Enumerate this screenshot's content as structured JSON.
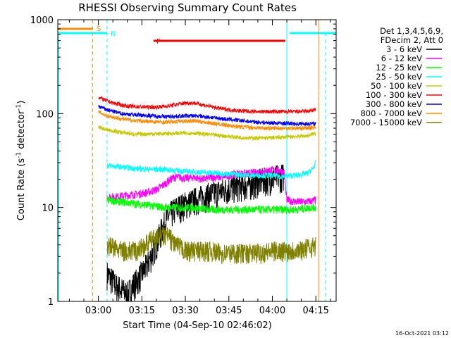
{
  "chart_data": {
    "type": "line",
    "title": "RHESSI Observing Summary Count Rates",
    "xlabel": "Start Time (04-Sep-10 02:46:02)",
    "ylabel_main": "Count Rate (s",
    "ylabel_sup1": "-1",
    "ylabel_mid": " detector",
    "ylabel_sup2": "-1",
    "ylabel_end": ")",
    "yscale": "log",
    "ylim": [
      1,
      1000
    ],
    "xlim_minutes": [
      0,
      96
    ],
    "x_tick_labels": [
      "03:00",
      "03:15",
      "03:30",
      "03:45",
      "04:00",
      "04:15"
    ],
    "x_tick_minutes": [
      14,
      29,
      44,
      59,
      74,
      89
    ],
    "y_tick_labels": [
      "1",
      "10",
      "100",
      "1000"
    ],
    "y_tick_values": [
      1,
      10,
      100,
      1000
    ],
    "legend_header": [
      "Det 1,3,4,5,6,9,",
      "FDecim 2, Att 0"
    ],
    "flag_labels": {
      "saa": "S",
      "night": "N",
      "flare": "F"
    },
    "flags": {
      "saa": [
        [
          0,
          12
        ]
      ],
      "night": [
        [
          0,
          17
        ],
        [
          80,
          96
        ]
      ],
      "flare": [
        [
          33,
          78.5
        ]
      ]
    },
    "vertical_markers_minutes": [
      12,
      17,
      79,
      90
    ],
    "series": [
      {
        "name": "3 - 6 keV",
        "color": "#000000",
        "x": [
          17,
          20,
          24,
          26,
          28,
          29,
          31,
          33,
          35,
          36,
          38,
          41,
          44,
          47,
          50,
          53,
          56,
          59,
          62,
          65,
          67,
          69,
          72,
          75,
          78
        ],
        "y": [
          2.0,
          1.5,
          1.2,
          1.5,
          1.8,
          2.0,
          2.5,
          3.5,
          5.0,
          6.0,
          8.0,
          10,
          11,
          12,
          13,
          14,
          15,
          16,
          17,
          17.5,
          18,
          19,
          20,
          21,
          22
        ]
      },
      {
        "name": "6 - 12 keV",
        "color": "#ff00ff",
        "x": [
          17,
          20,
          24,
          28,
          31,
          34,
          36,
          38,
          40,
          42,
          44,
          47,
          50,
          53,
          56,
          59,
          62,
          65,
          68,
          71,
          74,
          76,
          78,
          79,
          82,
          86,
          89
        ],
        "y": [
          13,
          13,
          13.5,
          14,
          14.5,
          15.5,
          17,
          19,
          21,
          21,
          20.5,
          21,
          20,
          21,
          21,
          22,
          23,
          23,
          23.5,
          24.5,
          25,
          25,
          24,
          12,
          11.5,
          11.5,
          12
        ]
      },
      {
        "name": "12 - 25 keV",
        "color": "#00ff00",
        "x": [
          17,
          22,
          27,
          32,
          37,
          42,
          47,
          52,
          57,
          62,
          67,
          72,
          77,
          82,
          87,
          89
        ],
        "y": [
          12,
          11.5,
          11,
          10.5,
          10,
          10,
          10,
          9.5,
          9.5,
          9.5,
          9.5,
          9.5,
          9.5,
          9.5,
          10,
          10
        ]
      },
      {
        "name": "25 - 50 keV",
        "color": "#00ffff",
        "x": [
          17,
          22,
          27,
          32,
          37,
          42,
          47,
          52,
          57,
          62,
          67,
          72,
          77,
          82,
          86,
          88,
          89
        ],
        "y": [
          28,
          27,
          26,
          25.5,
          25.5,
          24.5,
          24,
          23.5,
          23,
          22.5,
          22,
          22,
          21.5,
          22,
          23,
          26,
          30
        ]
      },
      {
        "name": "50 - 100 keV",
        "color": "#c8c800",
        "x": [
          14,
          17,
          22,
          27,
          32,
          37,
          42,
          47,
          52,
          57,
          62,
          67,
          72,
          77,
          82,
          86,
          89
        ],
        "y": [
          72,
          67,
          63,
          60,
          61,
          61,
          62,
          62,
          60,
          58,
          56,
          55,
          55,
          56,
          57,
          58,
          62
        ]
      },
      {
        "name": "100 - 300 keV",
        "color": "#ff0000",
        "x": [
          14,
          16,
          19,
          24,
          29,
          34,
          39,
          44,
          47,
          51,
          55,
          59,
          63,
          68,
          73,
          78,
          82,
          86,
          89
        ],
        "y": [
          150,
          140,
          130,
          120,
          118,
          117,
          122,
          130,
          130,
          122,
          115,
          110,
          107,
          105,
          105,
          105,
          105,
          106,
          110
        ]
      },
      {
        "name": "300 - 800 keV",
        "color": "#0000ff",
        "x": [
          14,
          17,
          22,
          27,
          32,
          37,
          42,
          47,
          52,
          57,
          62,
          67,
          72,
          77,
          82,
          86,
          89
        ],
        "y": [
          120,
          110,
          100,
          97,
          95,
          93,
          94,
          95,
          92,
          88,
          85,
          82,
          80,
          79,
          78,
          78,
          78
        ]
      },
      {
        "name": "800 - 7000 keV",
        "color": "#ff8c00",
        "x": [
          14,
          17,
          22,
          27,
          32,
          37,
          42,
          47,
          52,
          57,
          62,
          67,
          72,
          77,
          82,
          86,
          89
        ],
        "y": [
          105,
          95,
          88,
          84,
          82,
          81,
          83,
          84,
          80,
          76,
          73,
          71,
          70,
          70,
          70,
          70,
          72
        ]
      },
      {
        "name": "7000 - 15000 keV",
        "color": "#808000",
        "x": [
          17,
          22,
          27,
          30,
          32,
          35,
          38,
          41,
          44,
          48,
          52,
          56,
          60,
          64,
          68,
          72,
          76,
          80,
          84,
          89
        ],
        "y": [
          4.0,
          3.5,
          3.5,
          4.0,
          4.5,
          5.0,
          5.0,
          4.0,
          3.5,
          3.5,
          3.5,
          3.3,
          3.3,
          3.3,
          3.3,
          3.4,
          3.5,
          3.5,
          3.6,
          4.0
        ]
      }
    ]
  },
  "timestamp": "16-Oct-2021 03:12"
}
